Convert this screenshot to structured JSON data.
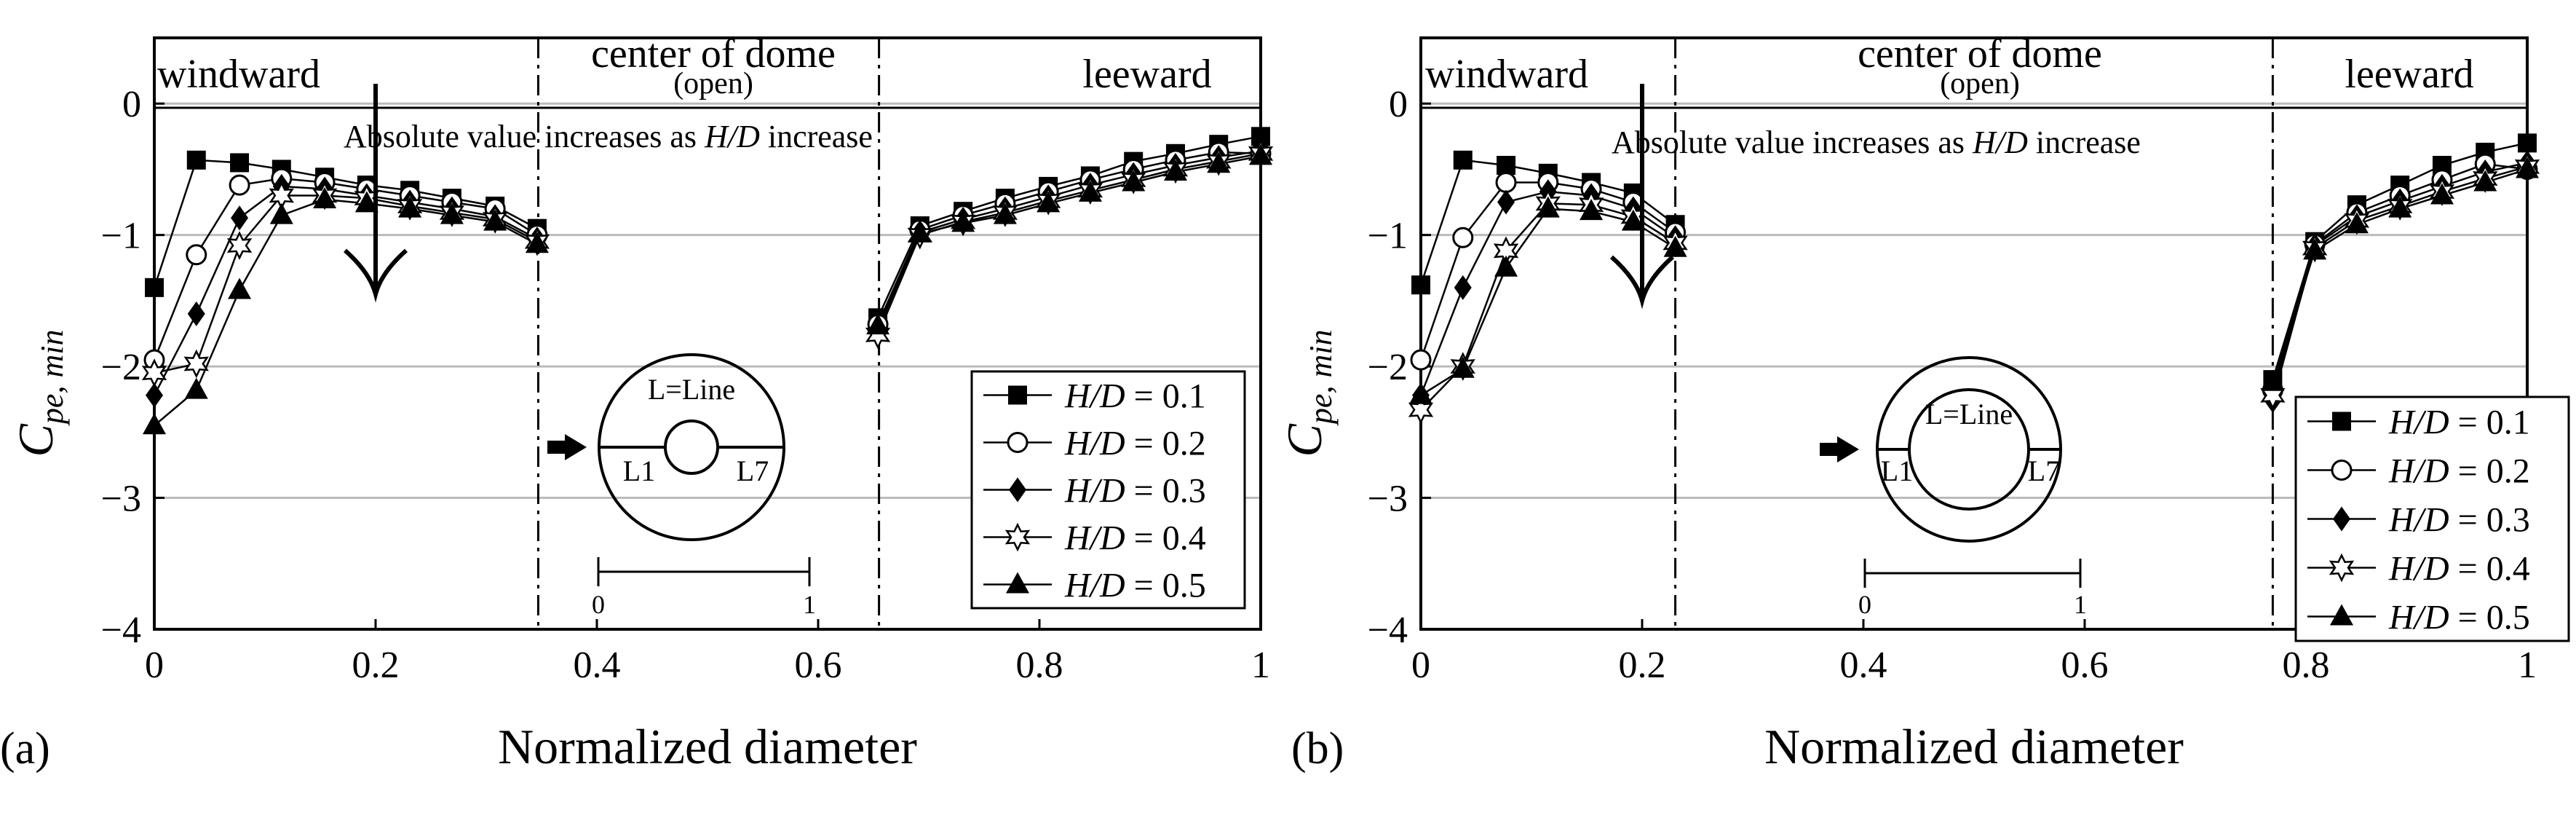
{
  "figure": {
    "panel_labels": [
      "(a)",
      "(b)"
    ],
    "xlabel": "Normalized diameter",
    "ylabel_main": "C",
    "ylabel_sub": "pe, min",
    "region_labels": {
      "windward": "windward",
      "center": "center of dome",
      "center_sub": "(open)",
      "leeward": "leeward"
    },
    "annotation": {
      "prefix": "Absolute value increases as ",
      "emph": "H/D",
      "suffix": " increase"
    },
    "inset": {
      "line_label": "L=Line",
      "left_label": "L1",
      "right_label": "L7",
      "scale_start": "0",
      "scale_end": "1"
    },
    "legend_prefix": "H/D",
    "legend_values": [
      "= 0.1",
      "= 0.2",
      "= 0.3",
      "= 0.4",
      "= 0.5"
    ],
    "markers": [
      "square",
      "circle",
      "diamond",
      "star",
      "triangle"
    ],
    "colors": {
      "line": "#000000",
      "grid": "#bbbbbb",
      "background": "#ffffff"
    }
  },
  "chart_data": [
    {
      "type": "line",
      "panel": "(a)",
      "xlabel": "Normalized diameter",
      "ylabel": "Cpe, min",
      "xlim": [
        0,
        1
      ],
      "ylim": [
        -4,
        0.5
      ],
      "xticks": [
        "0",
        "0.2",
        "0.4",
        "0.6",
        "0.8",
        "1"
      ],
      "xtick_values": [
        0,
        0.2,
        0.4,
        0.6,
        0.8,
        1
      ],
      "yticks": [
        "−4",
        "−3",
        "−2",
        "−1",
        "0"
      ],
      "ytick_values": [
        -4,
        -3,
        -2,
        -1,
        0
      ],
      "region_boundaries": [
        0.347,
        0.655
      ],
      "arrow": {
        "x": 0.2,
        "y_from": 0.15,
        "y_to": -1.45
      },
      "series": [
        {
          "name": "H/D = 0.1",
          "segments": [
            {
              "x": [
                0,
                0.038,
                0.077,
                0.115,
                0.154,
                0.192,
                0.231,
                0.269,
                0.308,
                0.346
              ],
              "y": [
                -1.4,
                -0.43,
                -0.45,
                -0.5,
                -0.56,
                -0.62,
                -0.66,
                -0.72,
                -0.78,
                -0.95
              ]
            },
            {
              "x": [
                0.654,
                0.692,
                0.731,
                0.769,
                0.808,
                0.846,
                0.885,
                0.923,
                0.962,
                1.0
              ],
              "y": [
                -1.63,
                -0.93,
                -0.82,
                -0.72,
                -0.63,
                -0.55,
                -0.44,
                -0.38,
                -0.31,
                -0.25
              ]
            }
          ]
        },
        {
          "name": "H/D = 0.2",
          "segments": [
            {
              "x": [
                0,
                0.038,
                0.077,
                0.115,
                0.154,
                0.192,
                0.231,
                0.269,
                0.308,
                0.346
              ],
              "y": [
                -1.95,
                -1.15,
                -0.62,
                -0.57,
                -0.6,
                -0.65,
                -0.7,
                -0.75,
                -0.8,
                -1.0
              ]
            },
            {
              "x": [
                0.654,
                0.692,
                0.731,
                0.769,
                0.808,
                0.846,
                0.885,
                0.923,
                0.962,
                1.0
              ],
              "y": [
                -1.68,
                -0.96,
                -0.85,
                -0.76,
                -0.67,
                -0.58,
                -0.5,
                -0.43,
                -0.37,
                -0.38
              ]
            }
          ]
        },
        {
          "name": "H/D = 0.3",
          "segments": [
            {
              "x": [
                0,
                0.038,
                0.077,
                0.115,
                0.154,
                0.192,
                0.231,
                0.269,
                0.308,
                0.346
              ],
              "y": [
                -2.22,
                -1.6,
                -0.87,
                -0.63,
                -0.65,
                -0.7,
                -0.75,
                -0.8,
                -0.86,
                -1.03
              ]
            },
            {
              "x": [
                0.654,
                0.692,
                0.731,
                0.769,
                0.808,
                0.846,
                0.885,
                0.923,
                0.962,
                1.0
              ],
              "y": [
                -1.72,
                -0.98,
                -0.88,
                -0.8,
                -0.71,
                -0.62,
                -0.54,
                -0.47,
                -0.41,
                -0.36
              ]
            }
          ]
        },
        {
          "name": "H/D = 0.4",
          "segments": [
            {
              "x": [
                0,
                0.038,
                0.077,
                0.115,
                0.154,
                0.192,
                0.231,
                0.269,
                0.308,
                0.346
              ],
              "y": [
                -2.05,
                -1.98,
                -1.08,
                -0.7,
                -0.7,
                -0.72,
                -0.78,
                -0.83,
                -0.88,
                -1.05
              ]
            },
            {
              "x": [
                0.654,
                0.692,
                0.731,
                0.769,
                0.808,
                0.846,
                0.885,
                0.923,
                0.962,
                1.0
              ],
              "y": [
                -1.76,
                -1.0,
                -0.9,
                -0.83,
                -0.74,
                -0.66,
                -0.58,
                -0.5,
                -0.44,
                -0.38
              ]
            }
          ]
        },
        {
          "name": "H/D = 0.5",
          "segments": [
            {
              "x": [
                0,
                0.038,
                0.077,
                0.115,
                0.154,
                0.192,
                0.231,
                0.269,
                0.308,
                0.346
              ],
              "y": [
                -2.45,
                -2.18,
                -1.42,
                -0.85,
                -0.73,
                -0.76,
                -0.8,
                -0.85,
                -0.9,
                -1.07
              ]
            },
            {
              "x": [
                0.654,
                0.692,
                0.731,
                0.769,
                0.808,
                0.846,
                0.885,
                0.923,
                0.962,
                1.0
              ],
              "y": [
                -1.69,
                -0.99,
                -0.91,
                -0.85,
                -0.76,
                -0.68,
                -0.6,
                -0.52,
                -0.46,
                -0.4
              ]
            }
          ]
        }
      ]
    },
    {
      "type": "line",
      "panel": "(b)",
      "xlabel": "Normalized diameter",
      "ylabel": "Cpe, min",
      "xlim": [
        0,
        1
      ],
      "ylim": [
        -4,
        0.5
      ],
      "xticks": [
        "0",
        "0.2",
        "0.4",
        "0.6",
        "0.8",
        "1"
      ],
      "xtick_values": [
        0,
        0.2,
        0.4,
        0.6,
        0.8,
        1
      ],
      "yticks": [
        "−4",
        "−3",
        "−2",
        "−1",
        "0"
      ],
      "ytick_values": [
        -4,
        -3,
        -2,
        -1,
        0
      ],
      "region_boundaries": [
        0.23,
        0.77
      ],
      "arrow": {
        "x": 0.2,
        "y_from": 0.15,
        "y_to": -1.5
      },
      "series": [
        {
          "name": "H/D = 0.1",
          "segments": [
            {
              "x": [
                0,
                0.038,
                0.077,
                0.115,
                0.154,
                0.192,
                0.23
              ],
              "y": [
                -1.38,
                -0.43,
                -0.47,
                -0.53,
                -0.6,
                -0.68,
                -0.92
              ]
            },
            {
              "x": [
                0.77,
                0.808,
                0.846,
                0.885,
                0.923,
                0.962,
                1.0
              ],
              "y": [
                -2.1,
                -1.05,
                -0.77,
                -0.62,
                -0.47,
                -0.37,
                -0.3
              ]
            }
          ]
        },
        {
          "name": "H/D = 0.2",
          "segments": [
            {
              "x": [
                0,
                0.038,
                0.077,
                0.115,
                0.154,
                0.192,
                0.23
              ],
              "y": [
                -1.95,
                -1.02,
                -0.6,
                -0.6,
                -0.65,
                -0.75,
                -0.98
              ]
            },
            {
              "x": [
                0.77,
                0.808,
                0.846,
                0.885,
                0.923,
                0.962,
                1.0
              ],
              "y": [
                -2.18,
                -1.07,
                -0.83,
                -0.7,
                -0.58,
                -0.46,
                -0.5
              ]
            }
          ]
        },
        {
          "name": "H/D = 0.3",
          "segments": [
            {
              "x": [
                0,
                0.038,
                0.077,
                0.115,
                0.154,
                0.192,
                0.23
              ],
              "y": [
                -2.22,
                -1.4,
                -0.75,
                -0.67,
                -0.7,
                -0.8,
                -1.02
              ]
            },
            {
              "x": [
                0.77,
                0.808,
                0.846,
                0.885,
                0.923,
                0.962,
                1.0
              ],
              "y": [
                -2.26,
                -1.08,
                -0.86,
                -0.74,
                -0.63,
                -0.52,
                -0.45
              ]
            }
          ]
        },
        {
          "name": "H/D = 0.4",
          "segments": [
            {
              "x": [
                0,
                0.038,
                0.077,
                0.115,
                0.154,
                0.192,
                0.23
              ],
              "y": [
                -2.33,
                -2.0,
                -1.12,
                -0.76,
                -0.77,
                -0.86,
                -1.06
              ]
            },
            {
              "x": [
                0.77,
                0.808,
                0.846,
                0.885,
                0.923,
                0.962,
                1.0
              ],
              "y": [
                -2.22,
                -1.1,
                -0.89,
                -0.78,
                -0.67,
                -0.57,
                -0.48
              ]
            }
          ]
        },
        {
          "name": "H/D = 0.5",
          "segments": [
            {
              "x": [
                0,
                0.038,
                0.077,
                0.115,
                0.154,
                0.192,
                0.23
              ],
              "y": [
                -2.22,
                -2.02,
                -1.25,
                -0.8,
                -0.82,
                -0.9,
                -1.1
              ]
            },
            {
              "x": [
                0.77,
                0.808,
                0.846,
                0.885,
                0.923,
                0.962,
                1.0
              ],
              "y": [
                -2.12,
                -1.12,
                -0.92,
                -0.8,
                -0.7,
                -0.6,
                -0.5
              ]
            }
          ]
        }
      ]
    }
  ]
}
